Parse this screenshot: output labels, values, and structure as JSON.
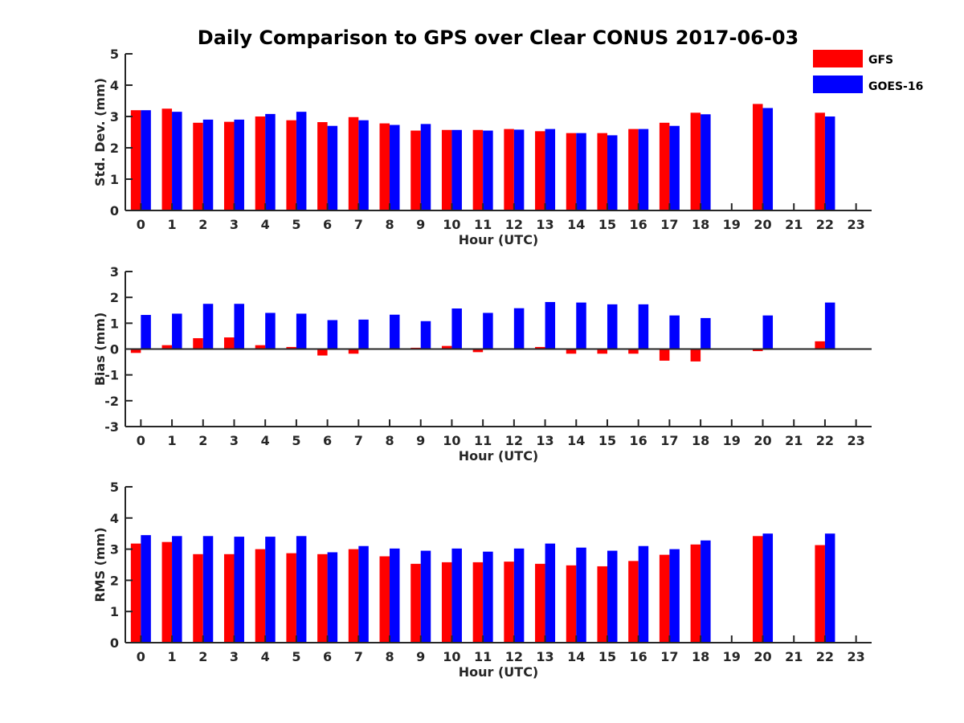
{
  "chart_data": {
    "type": "bar",
    "title": "Daily Comparison to GPS over Clear CONUS 2017-06-03",
    "legend": {
      "placement": "top-right",
      "entries": [
        {
          "name": "GFS",
          "color": "#ff0000"
        },
        {
          "name": "GOES-16",
          "color": "#0000ff"
        }
      ]
    },
    "categories": [
      "0",
      "1",
      "2",
      "3",
      "4",
      "5",
      "6",
      "7",
      "8",
      "9",
      "10",
      "11",
      "12",
      "13",
      "14",
      "15",
      "16",
      "17",
      "18",
      "19",
      "20",
      "21",
      "22",
      "23"
    ],
    "panels": [
      {
        "id": "stddev",
        "xlabel": "Hour (UTC)",
        "ylabel": "Std. Dev. (mm)",
        "ylim": [
          0,
          5
        ],
        "yticks": [
          "0",
          "1",
          "2",
          "3",
          "4",
          "5"
        ],
        "series": [
          {
            "name": "GFS",
            "color": "#ff0000",
            "values": [
              3.2,
              3.25,
              2.8,
              2.83,
              3.0,
              2.88,
              2.82,
              2.98,
              2.78,
              2.55,
              2.57,
              2.57,
              2.6,
              2.53,
              2.47,
              2.47,
              2.6,
              2.8,
              3.12,
              null,
              3.4,
              null,
              3.12,
              null
            ]
          },
          {
            "name": "GOES-16",
            "color": "#0000ff",
            "values": [
              3.2,
              3.15,
              2.9,
              2.9,
              3.08,
              3.15,
              2.7,
              2.88,
              2.73,
              2.76,
              2.57,
              2.55,
              2.58,
              2.6,
              2.47,
              2.4,
              2.6,
              2.7,
              3.07,
              null,
              3.27,
              null,
              3.0,
              null
            ]
          }
        ]
      },
      {
        "id": "bias",
        "xlabel": "Hour (UTC)",
        "ylabel": "Bias (mm)",
        "ylim": [
          -3,
          3
        ],
        "yticks": [
          "-3",
          "-2",
          "-1",
          "0",
          "1",
          "2",
          "3"
        ],
        "series": [
          {
            "name": "GFS",
            "color": "#ff0000",
            "values": [
              -0.15,
              0.15,
              0.42,
              0.45,
              0.15,
              0.08,
              -0.25,
              -0.18,
              0.0,
              0.05,
              0.12,
              -0.12,
              0.0,
              0.08,
              -0.18,
              -0.18,
              -0.18,
              -0.45,
              -0.48,
              null,
              -0.08,
              null,
              0.3,
              null
            ]
          },
          {
            "name": "GOES-16",
            "color": "#0000ff",
            "values": [
              1.32,
              1.37,
              1.75,
              1.75,
              1.4,
              1.37,
              1.12,
              1.14,
              1.33,
              1.08,
              1.57,
              1.4,
              1.58,
              1.82,
              1.8,
              1.73,
              1.73,
              1.3,
              1.2,
              null,
              1.3,
              null,
              1.8,
              null
            ]
          }
        ]
      },
      {
        "id": "rms",
        "xlabel": "Hour (UTC)",
        "ylabel": "RMS (mm)",
        "ylim": [
          0,
          5
        ],
        "yticks": [
          "0",
          "1",
          "2",
          "3",
          "4",
          "5"
        ],
        "series": [
          {
            "name": "GFS",
            "color": "#ff0000",
            "values": [
              3.18,
              3.23,
              2.84,
              2.84,
              3.0,
              2.87,
              2.84,
              3.0,
              2.77,
              2.53,
              2.58,
              2.58,
              2.6,
              2.53,
              2.48,
              2.45,
              2.62,
              2.82,
              3.15,
              null,
              3.42,
              null,
              3.13,
              null
            ]
          },
          {
            "name": "GOES-16",
            "color": "#0000ff",
            "values": [
              3.45,
              3.42,
              3.42,
              3.4,
              3.4,
              3.42,
              2.9,
              3.1,
              3.02,
              2.95,
              3.02,
              2.92,
              3.02,
              3.18,
              3.05,
              2.95,
              3.1,
              3.0,
              3.28,
              null,
              3.5,
              null,
              3.5,
              null
            ]
          }
        ]
      }
    ]
  }
}
